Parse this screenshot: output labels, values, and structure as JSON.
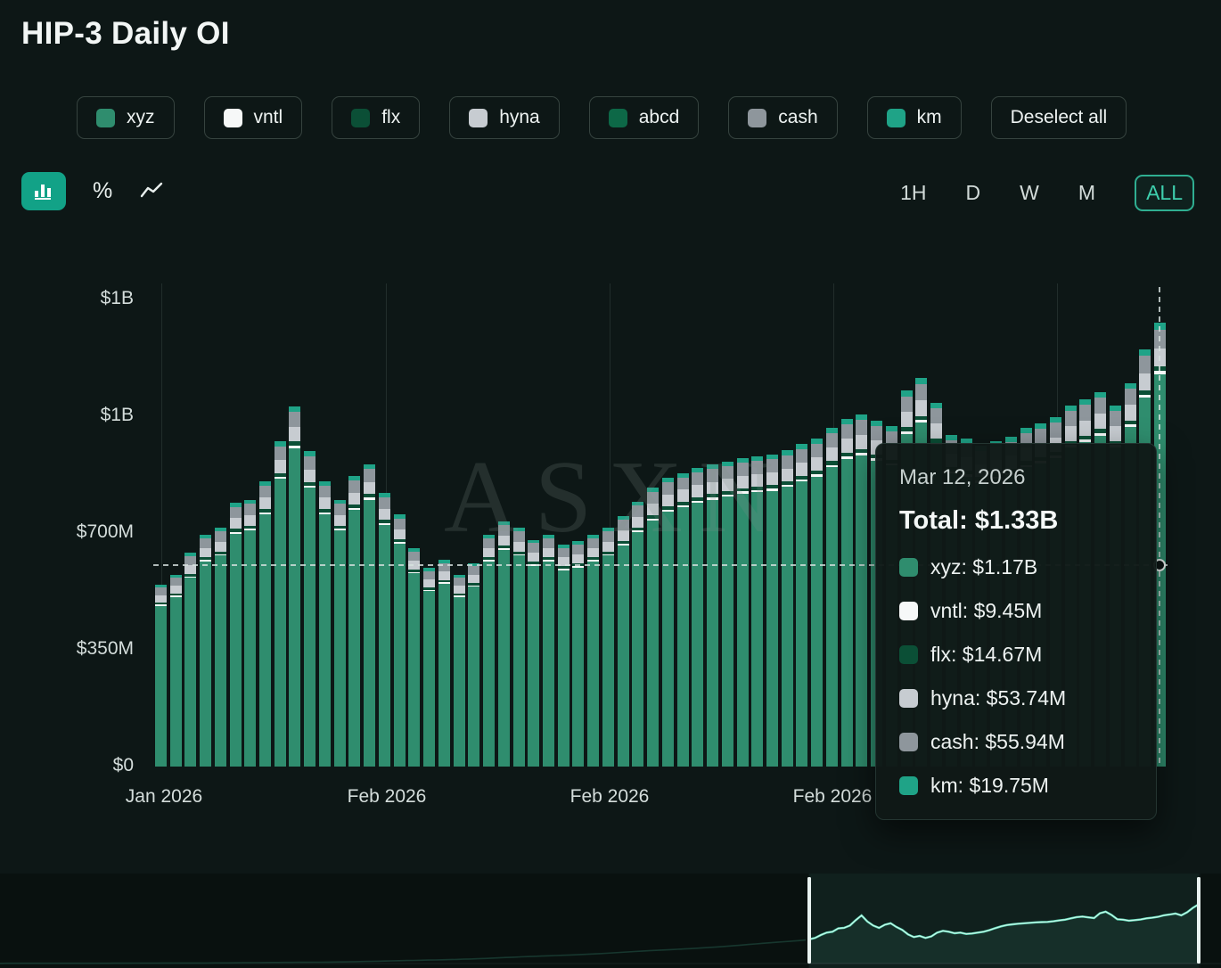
{
  "header": {
    "title": "HIP-3 Daily OI"
  },
  "legend": {
    "items": [
      {
        "label": "xyz",
        "color": "#2f8d6e"
      },
      {
        "label": "vntl",
        "color": "#f6f8f8"
      },
      {
        "label": "flx",
        "color": "#0b4f36"
      },
      {
        "label": "hyna",
        "color": "#c7ccd1"
      },
      {
        "label": "abcd",
        "color": "#0d6847"
      },
      {
        "label": "cash",
        "color": "#8e969c"
      },
      {
        "label": "km",
        "color": "#1fa387"
      }
    ],
    "deselect_label": "Deselect all"
  },
  "controls": {
    "percent_label": "%",
    "timeframes": [
      "1H",
      "D",
      "W",
      "M",
      "ALL"
    ],
    "active_timeframe": "ALL"
  },
  "chart": {
    "watermark": "ASXN",
    "y_ticks": [
      "$0",
      "$350M",
      "$700M",
      "$1B",
      "$1B"
    ],
    "x_ticks": [
      "Jan 2026",
      "Feb 2026",
      "Feb 2026",
      "Feb 2026"
    ]
  },
  "tooltip": {
    "date": "Mar 12, 2026",
    "total_label": "Total: $1.33B",
    "rows": [
      {
        "label": "xyz: $1.17B",
        "color": "#2f8d6e"
      },
      {
        "label": "vntl: $9.45M",
        "color": "#f6f8f8"
      },
      {
        "label": "flx: $14.67M",
        "color": "#0b4f36"
      },
      {
        "label": "hyna: $53.74M",
        "color": "#c7ccd1"
      },
      {
        "label": "cash: $55.94M",
        "color": "#8e969c"
      },
      {
        "label": "km: $19.75M",
        "color": "#1fa387"
      }
    ]
  },
  "chart_data": {
    "type": "bar",
    "stacked": true,
    "title": "HIP-3 Daily OI",
    "unit": "USD millions (estimated from axis)",
    "ylim": [
      0,
      1400
    ],
    "y_tick_values_musd": [
      0,
      350,
      700,
      1050,
      1400
    ],
    "y_tick_labels": [
      "$0",
      "$350M",
      "$700M",
      "$1B",
      "$1B"
    ],
    "x_tick_labels": [
      "Jan 2026",
      "Feb 2026",
      "Feb 2026",
      "Feb 2026"
    ],
    "series_order": [
      "xyz",
      "vntl",
      "flx",
      "hyna",
      "cash",
      "km"
    ],
    "series_colors": {
      "xyz": "#2f8d6e",
      "vntl": "#f6f8f8",
      "flx": "#0b4f36",
      "hyna": "#c7ccd1",
      "cash": "#8e969c",
      "km": "#1fa387"
    },
    "series_fractions": {
      "xyz": 0.884,
      "vntl": 0.0071,
      "flx": 0.0111,
      "hyna": 0.0406,
      "cash": 0.0423,
      "km": 0.0149
    },
    "totals_musd": [
      545,
      575,
      640,
      695,
      715,
      790,
      800,
      855,
      975,
      1080,
      945,
      855,
      800,
      870,
      905,
      820,
      755,
      655,
      595,
      620,
      575,
      610,
      695,
      735,
      715,
      680,
      695,
      665,
      675,
      695,
      715,
      750,
      795,
      835,
      865,
      880,
      895,
      905,
      915,
      925,
      930,
      935,
      948,
      967,
      983,
      1015,
      1042,
      1055,
      1036,
      1020,
      1127,
      1165,
      1090,
      994,
      983,
      961,
      975,
      988,
      1015,
      1028,
      1047,
      1082,
      1100,
      1122,
      1082,
      1150,
      1250,
      1330
    ],
    "highlighted_point": {
      "date": "Mar 12, 2026",
      "total": "$1.33B",
      "values": {
        "xyz": "$1.17B",
        "vntl": "$9.45M",
        "flx": "$14.67M",
        "hyna": "$53.74M",
        "cash": "$55.94M",
        "km": "$19.75M"
      }
    }
  }
}
